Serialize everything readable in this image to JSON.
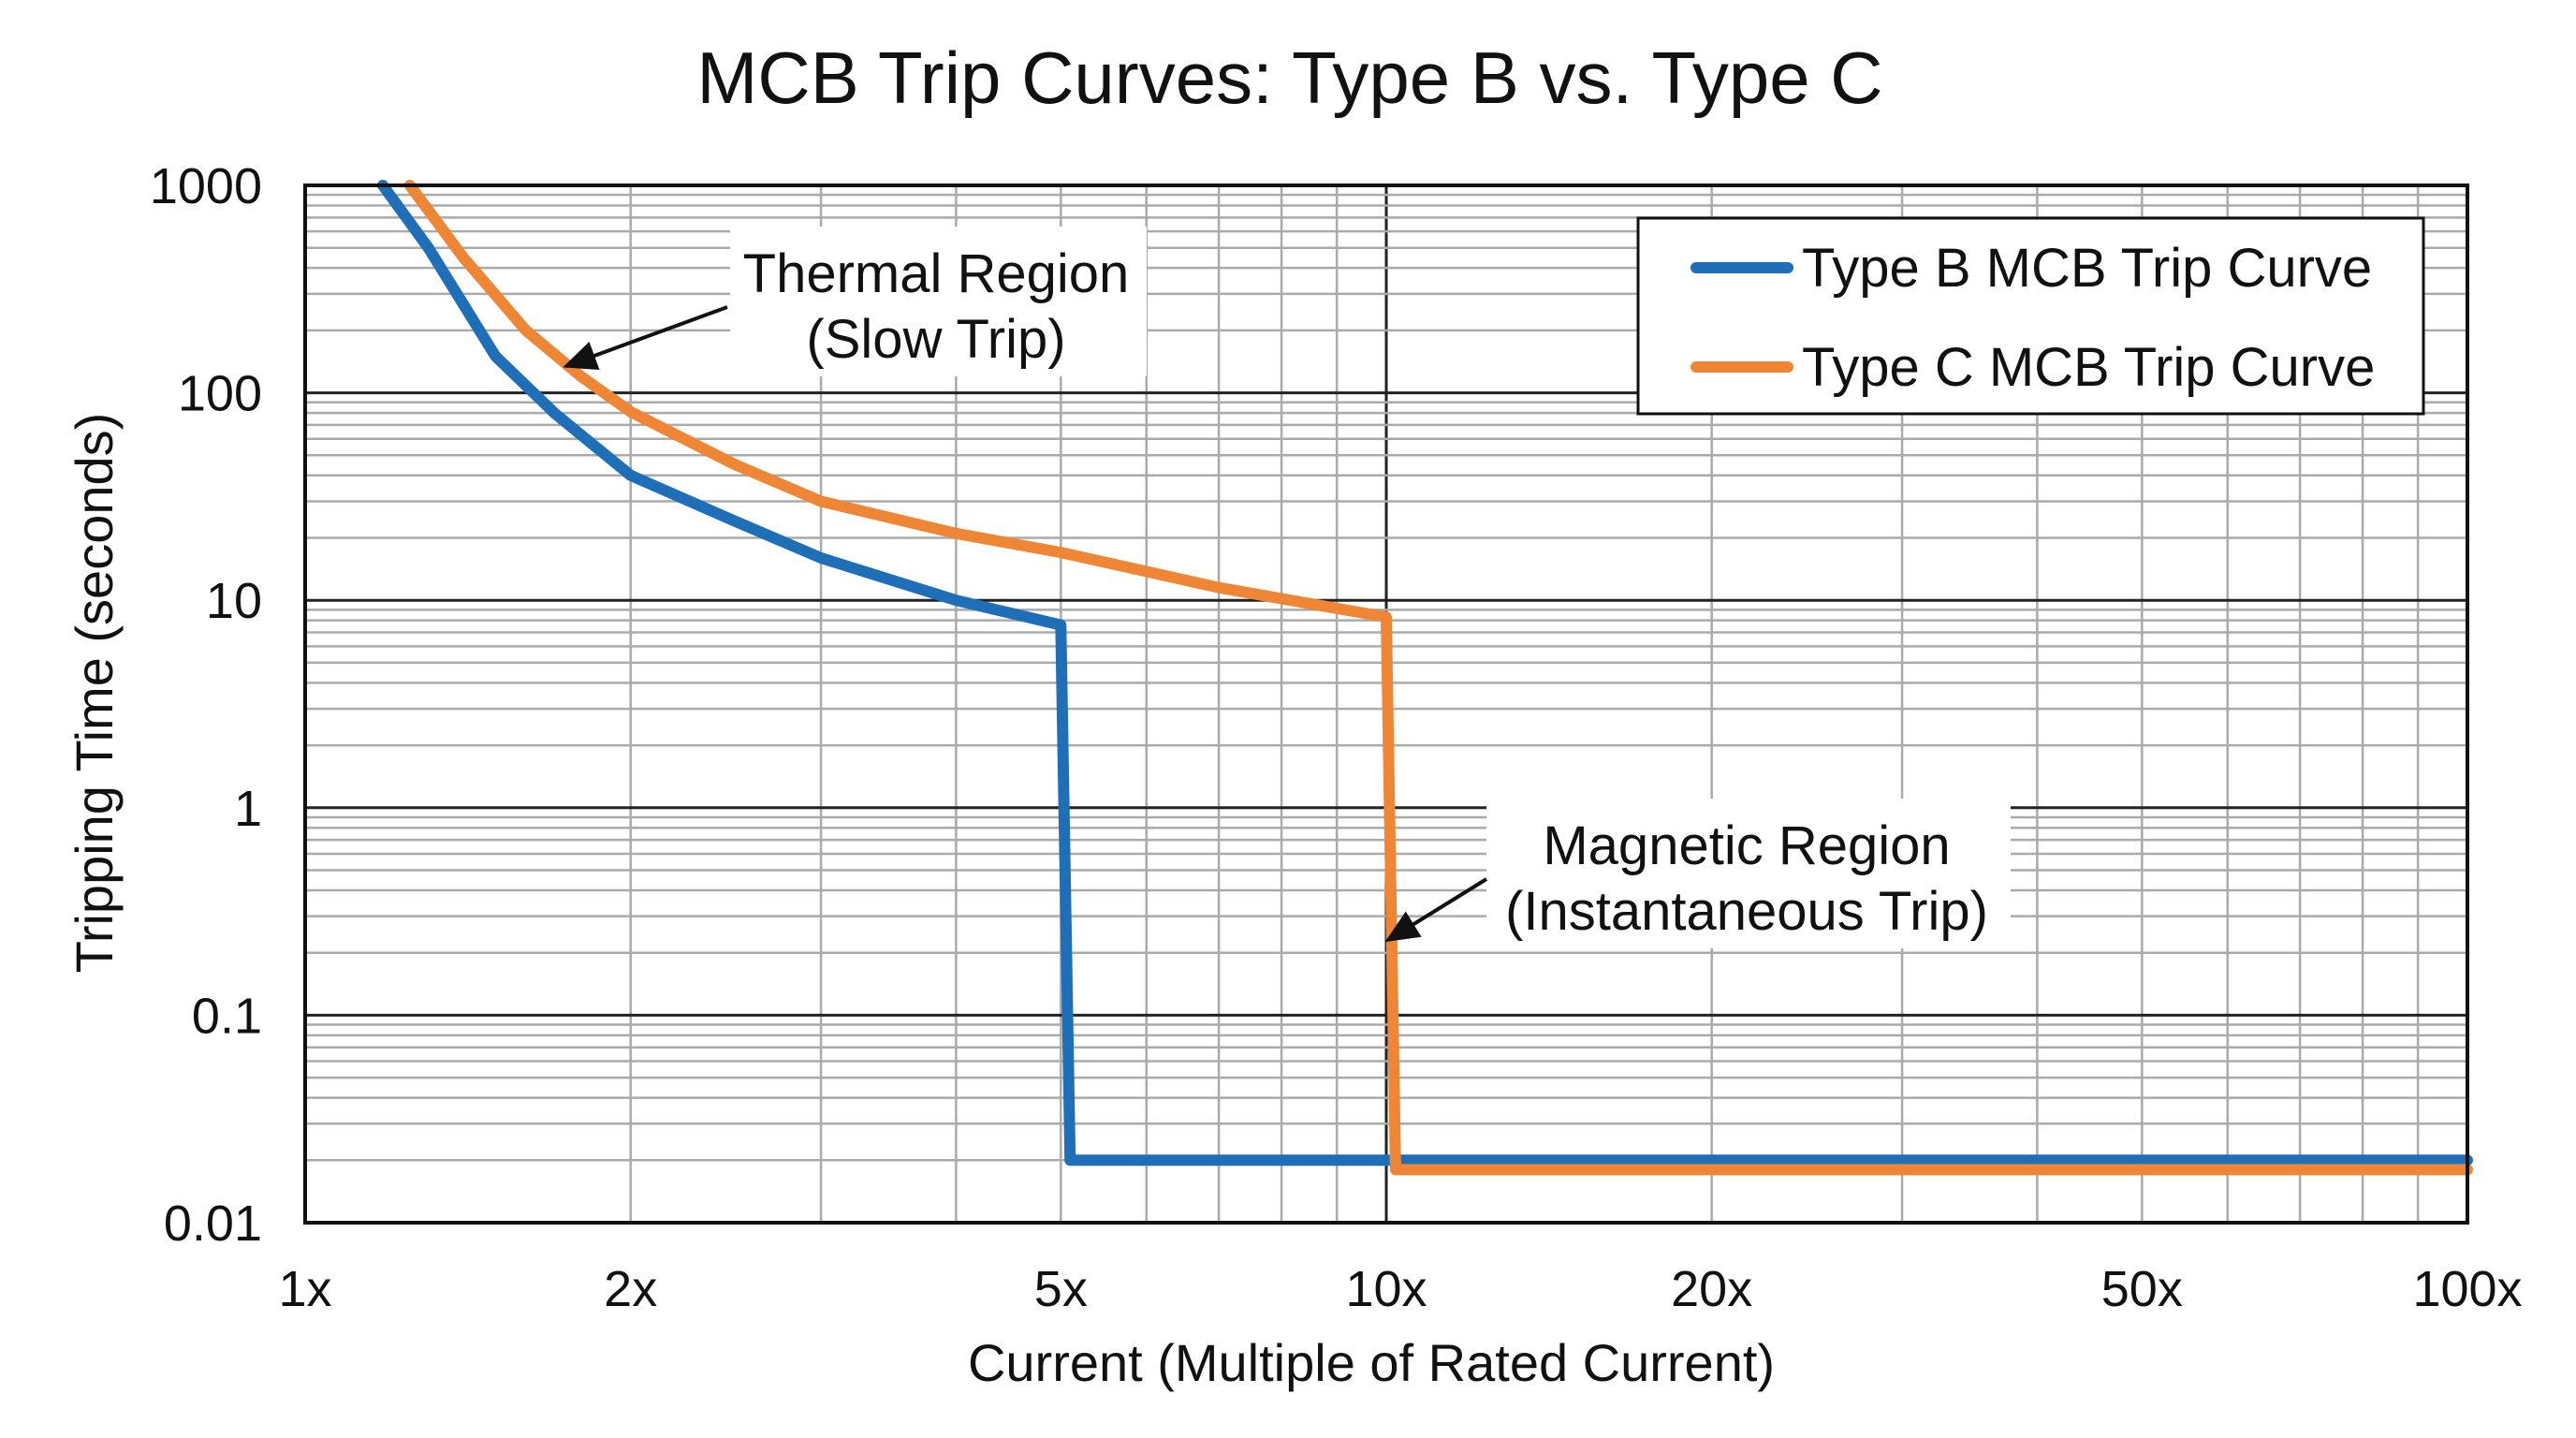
{
  "chart_data": {
    "type": "line",
    "title": "MCB Trip Curves: Type B vs. Type C",
    "xlabel": "Current (Multiple of Rated Current)",
    "ylabel": "Tripping Time (seconds)",
    "xscale": "log",
    "yscale": "log",
    "xlim": [
      1,
      100
    ],
    "ylim": [
      0.01,
      1000
    ],
    "grid": true,
    "legend_position": "top-right",
    "x_ticks": [
      {
        "value": 1,
        "label": "1x"
      },
      {
        "value": 2,
        "label": "2x"
      },
      {
        "value": 5,
        "label": "5x"
      },
      {
        "value": 10,
        "label": "10x"
      },
      {
        "value": 20,
        "label": "20x"
      },
      {
        "value": 50,
        "label": "50x"
      },
      {
        "value": 100,
        "label": "100x"
      }
    ],
    "y_ticks": [
      {
        "value": 1000,
        "label": "1000"
      },
      {
        "value": 100,
        "label": "100"
      },
      {
        "value": 10,
        "label": "10"
      },
      {
        "value": 1,
        "label": "1"
      },
      {
        "value": 0.1,
        "label": "0.1"
      },
      {
        "value": 0.01,
        "label": "0.01"
      }
    ],
    "series": [
      {
        "name": "Type B MCB Trip Curve",
        "color": "#1f6fb8",
        "points": [
          [
            1.18,
            1000
          ],
          [
            1.3,
            500
          ],
          [
            1.5,
            150
          ],
          [
            1.7,
            80
          ],
          [
            2,
            40
          ],
          [
            2.5,
            24
          ],
          [
            3,
            16
          ],
          [
            4,
            10
          ],
          [
            5,
            7.6
          ],
          [
            5.1,
            0.02
          ],
          [
            100,
            0.02
          ]
        ]
      },
      {
        "name": "Type C MCB Trip Curve",
        "color": "#ee8636",
        "points": [
          [
            1.25,
            1000
          ],
          [
            1.4,
            450
          ],
          [
            1.6,
            200
          ],
          [
            1.8,
            120
          ],
          [
            2,
            81
          ],
          [
            2.5,
            45
          ],
          [
            3,
            30
          ],
          [
            4,
            21
          ],
          [
            5,
            17
          ],
          [
            7,
            11.5
          ],
          [
            10,
            8.3
          ],
          [
            10.2,
            0.018
          ],
          [
            100,
            0.018
          ]
        ]
      }
    ],
    "annotations": [
      {
        "lines": [
          "Thermal Region",
          "(Slow Trip)"
        ]
      },
      {
        "lines": [
          "Magnetic Region",
          "(Instantaneous Trip)"
        ]
      }
    ]
  }
}
